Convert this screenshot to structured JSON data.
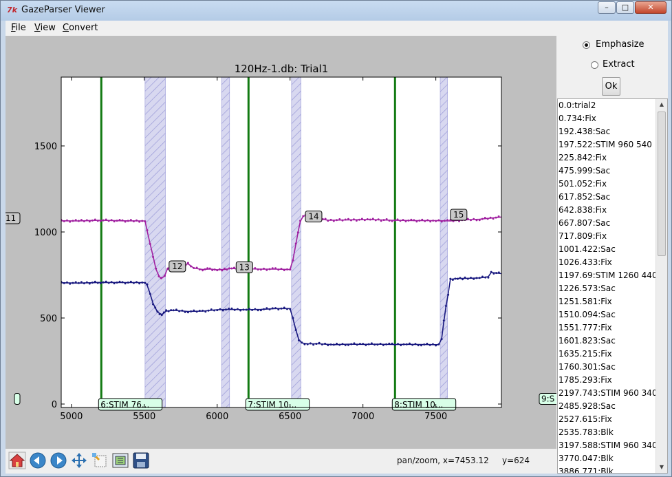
{
  "window": {
    "title": "GazeParser Viewer",
    "controls": [
      "–",
      "□",
      "✕"
    ]
  },
  "menu": [
    "File",
    "View",
    "Convert"
  ],
  "chart_data": {
    "type": "line",
    "title": "120Hz-1.db: Trial1",
    "xlabel": "",
    "ylabel": "",
    "xlim": [
      4930,
      7950
    ],
    "ylim": [
      -20,
      1900
    ],
    "x_ticks": [
      5000,
      5500,
      6000,
      6500,
      7000,
      7500
    ],
    "y_ticks": [
      0,
      500,
      1000,
      1500
    ],
    "series": [
      {
        "color": "#a020a0",
        "points": [
          [
            4930,
            1065
          ],
          [
            5050,
            1064
          ],
          [
            5200,
            1068
          ],
          [
            5350,
            1065
          ],
          [
            5505,
            1064
          ],
          [
            5520,
            1005
          ],
          [
            5540,
            930
          ],
          [
            5560,
            860
          ],
          [
            5580,
            785
          ],
          [
            5600,
            745
          ],
          [
            5615,
            728
          ],
          [
            5640,
            745
          ],
          [
            5660,
            790
          ],
          [
            5700,
            795
          ],
          [
            5750,
            805
          ],
          [
            5800,
            815
          ],
          [
            5840,
            790
          ],
          [
            5900,
            782
          ],
          [
            5950,
            785
          ],
          [
            6000,
            780
          ],
          [
            6050,
            782
          ],
          [
            6100,
            788
          ],
          [
            6150,
            785
          ],
          [
            6200,
            786
          ],
          [
            6300,
            784
          ],
          [
            6400,
            784
          ],
          [
            6500,
            782
          ],
          [
            6520,
            840
          ],
          [
            6540,
            930
          ],
          [
            6555,
            1000
          ],
          [
            6570,
            1060
          ],
          [
            6590,
            1092
          ],
          [
            6640,
            1100
          ],
          [
            6690,
            1080
          ],
          [
            6760,
            1068
          ],
          [
            6900,
            1070
          ],
          [
            7050,
            1072
          ],
          [
            7200,
            1068
          ],
          [
            7350,
            1066
          ],
          [
            7500,
            1066
          ],
          [
            7600,
            1064
          ],
          [
            7700,
            1070
          ],
          [
            7800,
            1074
          ],
          [
            7950,
            1087
          ]
        ]
      },
      {
        "color": "#1a1a80",
        "points": [
          [
            4930,
            705
          ],
          [
            5050,
            703
          ],
          [
            5200,
            707
          ],
          [
            5350,
            706
          ],
          [
            5505,
            706
          ],
          [
            5520,
            690
          ],
          [
            5540,
            640
          ],
          [
            5560,
            585
          ],
          [
            5590,
            535
          ],
          [
            5620,
            520
          ],
          [
            5650,
            540
          ],
          [
            5700,
            545
          ],
          [
            5800,
            538
          ],
          [
            5900,
            540
          ],
          [
            6000,
            548
          ],
          [
            6100,
            550
          ],
          [
            6200,
            548
          ],
          [
            6300,
            550
          ],
          [
            6400,
            555
          ],
          [
            6500,
            555
          ],
          [
            6520,
            495
          ],
          [
            6540,
            430
          ],
          [
            6560,
            375
          ],
          [
            6580,
            355
          ],
          [
            6620,
            350
          ],
          [
            6700,
            350
          ],
          [
            6800,
            345
          ],
          [
            6900,
            348
          ],
          [
            7000,
            347
          ],
          [
            7100,
            348
          ],
          [
            7200,
            346
          ],
          [
            7300,
            347
          ],
          [
            7400,
            346
          ],
          [
            7520,
            345
          ],
          [
            7540,
            380
          ],
          [
            7555,
            480
          ],
          [
            7570,
            570
          ],
          [
            7585,
            640
          ],
          [
            7600,
            725
          ],
          [
            7650,
            730
          ],
          [
            7700,
            730
          ],
          [
            7800,
            733
          ],
          [
            7860,
            740
          ],
          [
            7880,
            765
          ],
          [
            7950,
            758
          ]
        ]
      }
    ],
    "vertical_lines": [
      {
        "x": 5205,
        "label": "6:STIM 76..."
      },
      {
        "x": 6215,
        "label": "7:STIM 10..."
      },
      {
        "x": 7220,
        "label": "8:STIM 10..."
      }
    ],
    "spans": [
      [
        5505,
        5645
      ],
      [
        6030,
        6085
      ],
      [
        6510,
        6575
      ],
      [
        7530,
        7580
      ]
    ],
    "event_labels": [
      {
        "x": 5670,
        "y": 800,
        "label": "12"
      },
      {
        "x": 6130,
        "y": 795,
        "label": "13"
      },
      {
        "x": 6605,
        "y": 1090,
        "label": "14"
      },
      {
        "x": 7600,
        "y": 1100,
        "label": "15"
      }
    ],
    "edge_labels": [
      {
        "side": "left",
        "y": 1080,
        "label": "11"
      },
      {
        "side": "left",
        "y": 30,
        "label": ""
      },
      {
        "side": "right",
        "y": 30,
        "label": "9:S"
      }
    ],
    "colors": {
      "fix_line": "#127a12",
      "span": "#d8d8f0",
      "hatch": "#9a9ad8",
      "label_bg": "#c8c8c8",
      "stim_bg": "#d8ffe8"
    }
  },
  "toolbar": {
    "icons": [
      "home-icon",
      "back-icon",
      "forward-icon",
      "pan-icon",
      "zoom-icon",
      "configure-icon",
      "save-icon"
    ],
    "status_mode": "pan/zoom, x=7453.12",
    "status_y": "y=624"
  },
  "sidepanel": {
    "options": [
      {
        "label": "Emphasize",
        "checked": true
      },
      {
        "label": "Extract",
        "checked": false
      }
    ],
    "ok_label": "Ok",
    "list": [
      "0.0:trial2",
      "0.734:Fix",
      "192.438:Sac",
      "197.522:STIM 960 540",
      "225.842:Fix",
      "475.999:Sac",
      "501.052:Fix",
      "617.852:Sac",
      "642.838:Fix",
      "667.807:Sac",
      "717.809:Fix",
      "1001.422:Sac",
      "1026.433:Fix",
      "1197.69:STIM 1260 440",
      "1226.573:Sac",
      "1251.581:Fix",
      "1510.094:Sac",
      "1551.777:Fix",
      "1601.823:Sac",
      "1635.215:Fix",
      "1760.301:Sac",
      "1785.293:Fix",
      "2197.743:STIM 960 340",
      "2485.928:Sac",
      "2527.615:Fix",
      "2535.783:Blk",
      "3197.588:STIM 960 340",
      "3770.047:Blk",
      "3886.771:Blk"
    ]
  }
}
